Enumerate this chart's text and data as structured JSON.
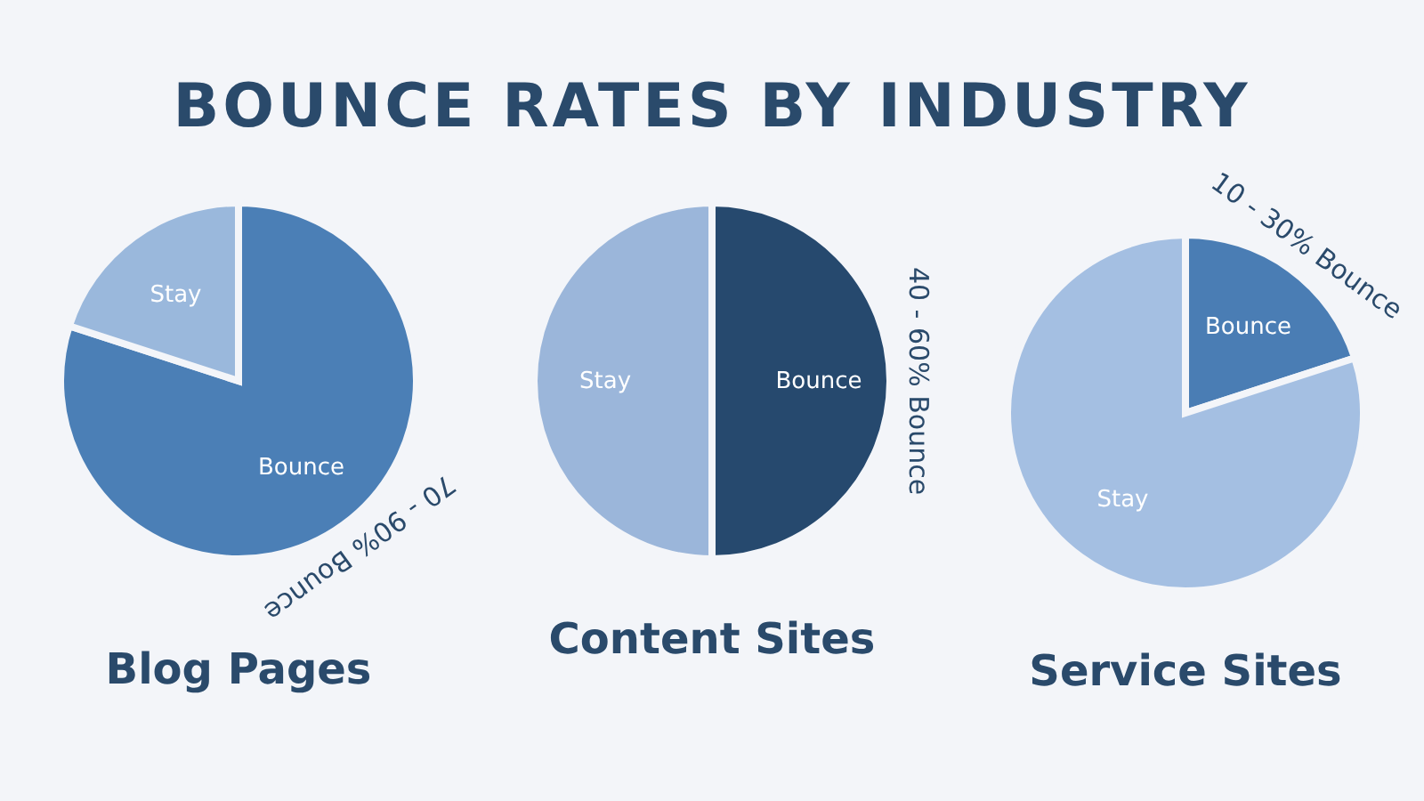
{
  "chart_data": [
    {
      "type": "pie",
      "title": "BOUNCE RATES BY INDUSTRY",
      "xlabel": "Blog Pages",
      "categories": [
        "Bounce",
        "Stay"
      ],
      "values": [
        80,
        20
      ],
      "colors": [
        "#4b7fb6",
        "#9ab8dc"
      ],
      "annotations": [
        "70 - 90% Bounce"
      ]
    },
    {
      "type": "pie",
      "xlabel": "Content Sites",
      "categories": [
        "Bounce",
        "Stay"
      ],
      "values": [
        50,
        50
      ],
      "colors": [
        "#26496e",
        "#9bb6da"
      ],
      "annotations": [
        "40 - 60% Bounce"
      ]
    },
    {
      "type": "pie",
      "xlabel": "Service Sites",
      "categories": [
        "Bounce",
        "Stay"
      ],
      "values": [
        20,
        80
      ],
      "colors": [
        "#4a7db4",
        "#a4bfe2"
      ],
      "annotations": [
        "10 - 30% Bounce"
      ]
    }
  ]
}
